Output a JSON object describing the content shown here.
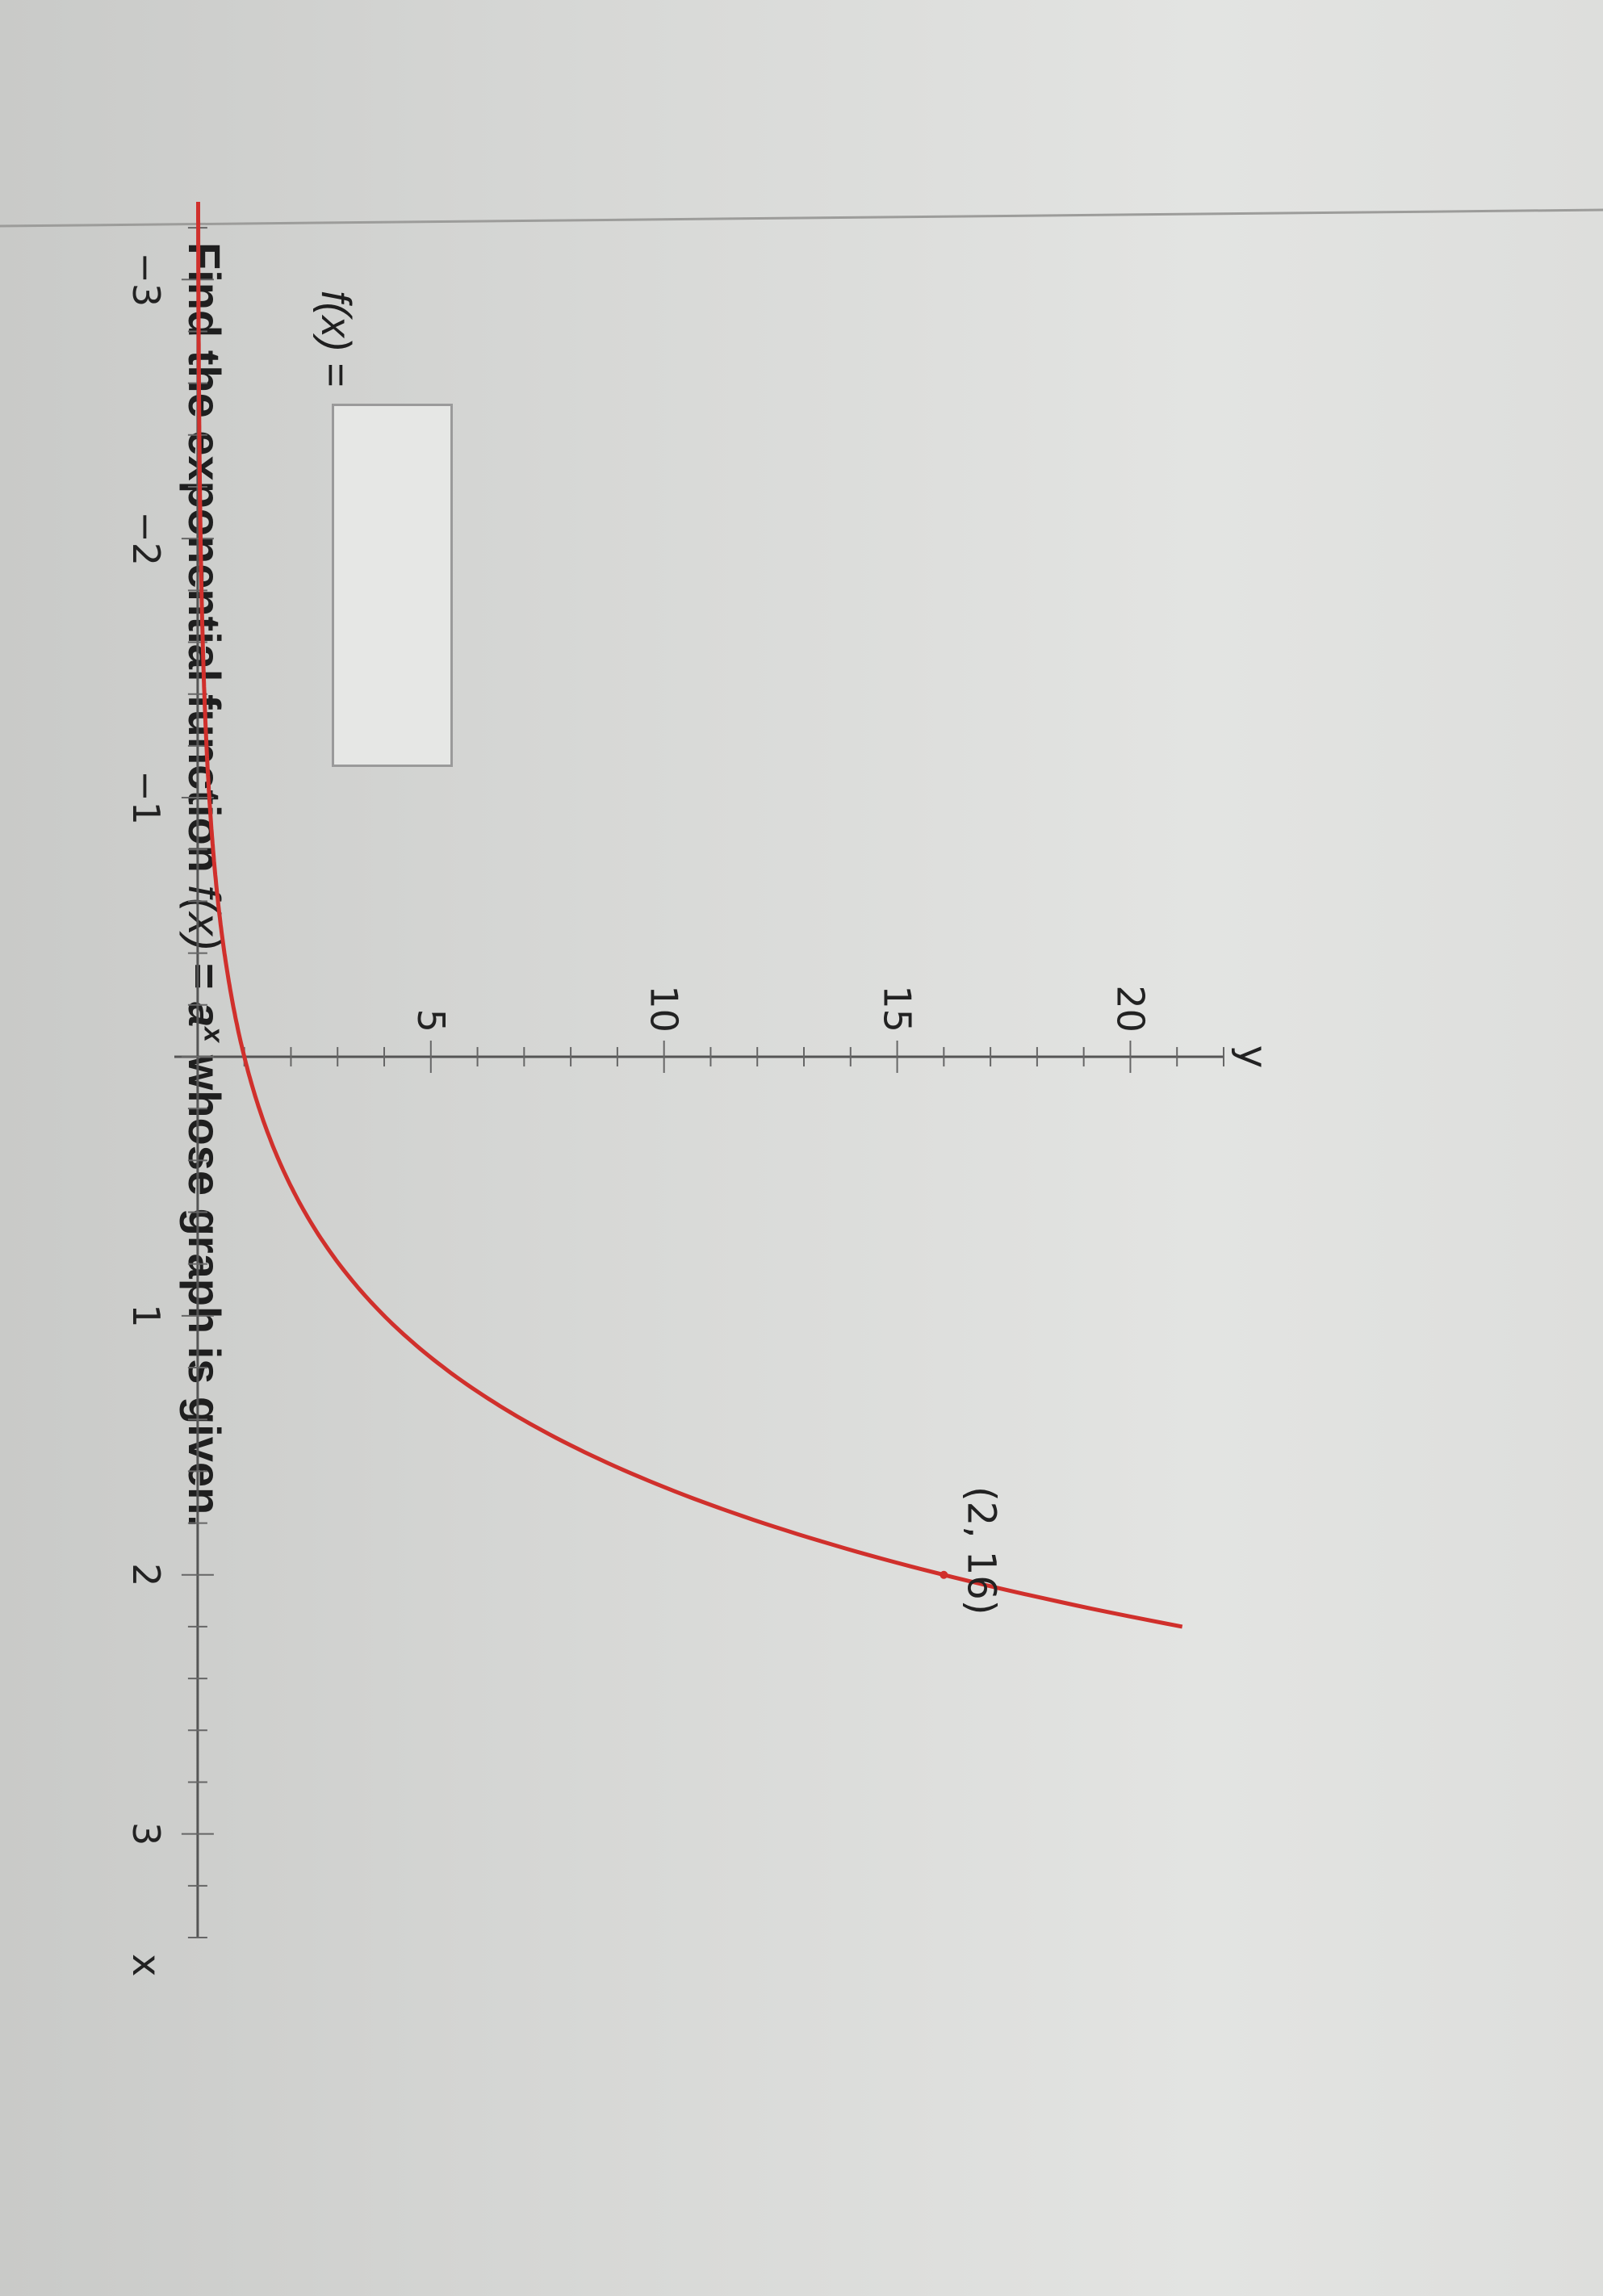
{
  "question": {
    "prefix": "Find the exponential function",
    "fx": "f(x)",
    "equals": "=",
    "base": "a",
    "exponent": "x",
    "suffix": "whose graph is given."
  },
  "answer": {
    "label": "f(x)",
    "equals": "=",
    "value": ""
  },
  "chart_data": {
    "type": "line",
    "title": "",
    "xlabel": "x",
    "ylabel": "y",
    "xlim": [
      -3.3,
      3.4
    ],
    "ylim": [
      -0.5,
      22
    ],
    "x_ticks": [
      -3,
      -2,
      -1,
      1,
      2,
      3
    ],
    "x_tick_labels": [
      "−3",
      "−2",
      "−1",
      "1",
      "2",
      "3"
    ],
    "y_ticks": [
      5,
      10,
      15,
      20
    ],
    "y_tick_labels": [
      "5",
      "10",
      "15",
      "20"
    ],
    "minor_x_step": 0.2,
    "minor_y_step": 1,
    "grid": false,
    "series": [
      {
        "function": "4^x",
        "base": 4,
        "x_range": [
          -3.3,
          2.2
        ],
        "color": "#d0302c"
      }
    ],
    "annotations": [
      {
        "text": "(2, 16)",
        "x": 2,
        "y": 16
      }
    ]
  }
}
